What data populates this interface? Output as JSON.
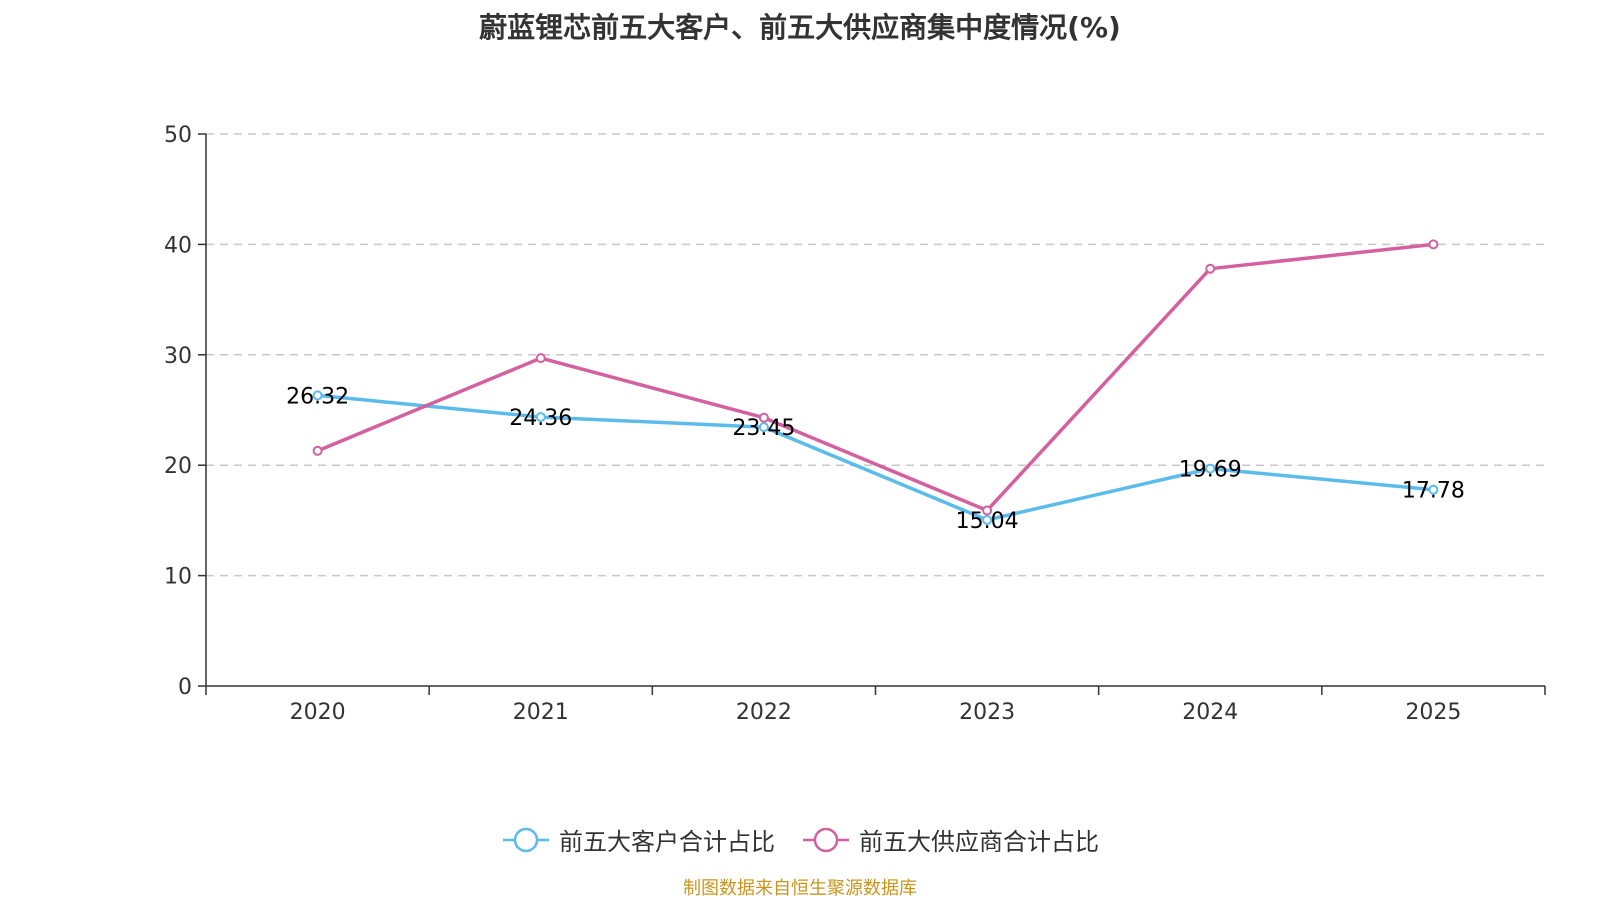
{
  "chart_data": {
    "type": "line",
    "title": "蔚蓝锂芯前五大客户、前五大供应商集中度情况(%)",
    "categories": [
      "2020",
      "2021",
      "2022",
      "2023",
      "2024",
      "2025"
    ],
    "ylim": [
      0,
      50
    ],
    "yticks": [
      "0",
      "10",
      "20",
      "30",
      "40",
      "50"
    ],
    "grid": true,
    "legend_position": "bottom",
    "series": [
      {
        "name": "前五大客户合计占比",
        "color": "#5bbcec",
        "values": [
          26.32,
          24.36,
          23.45,
          15.04,
          19.69,
          17.78
        ],
        "labels": [
          "26.32",
          "24.36",
          "23.45",
          "15.04",
          "19.69",
          "17.78"
        ]
      },
      {
        "name": "前五大供应商合计占比",
        "color": "#d4609f",
        "values": [
          21.3,
          29.7,
          24.3,
          15.9,
          37.8,
          40.0
        ],
        "labels": []
      }
    ]
  },
  "source": "制图数据来自恒生聚源数据库"
}
